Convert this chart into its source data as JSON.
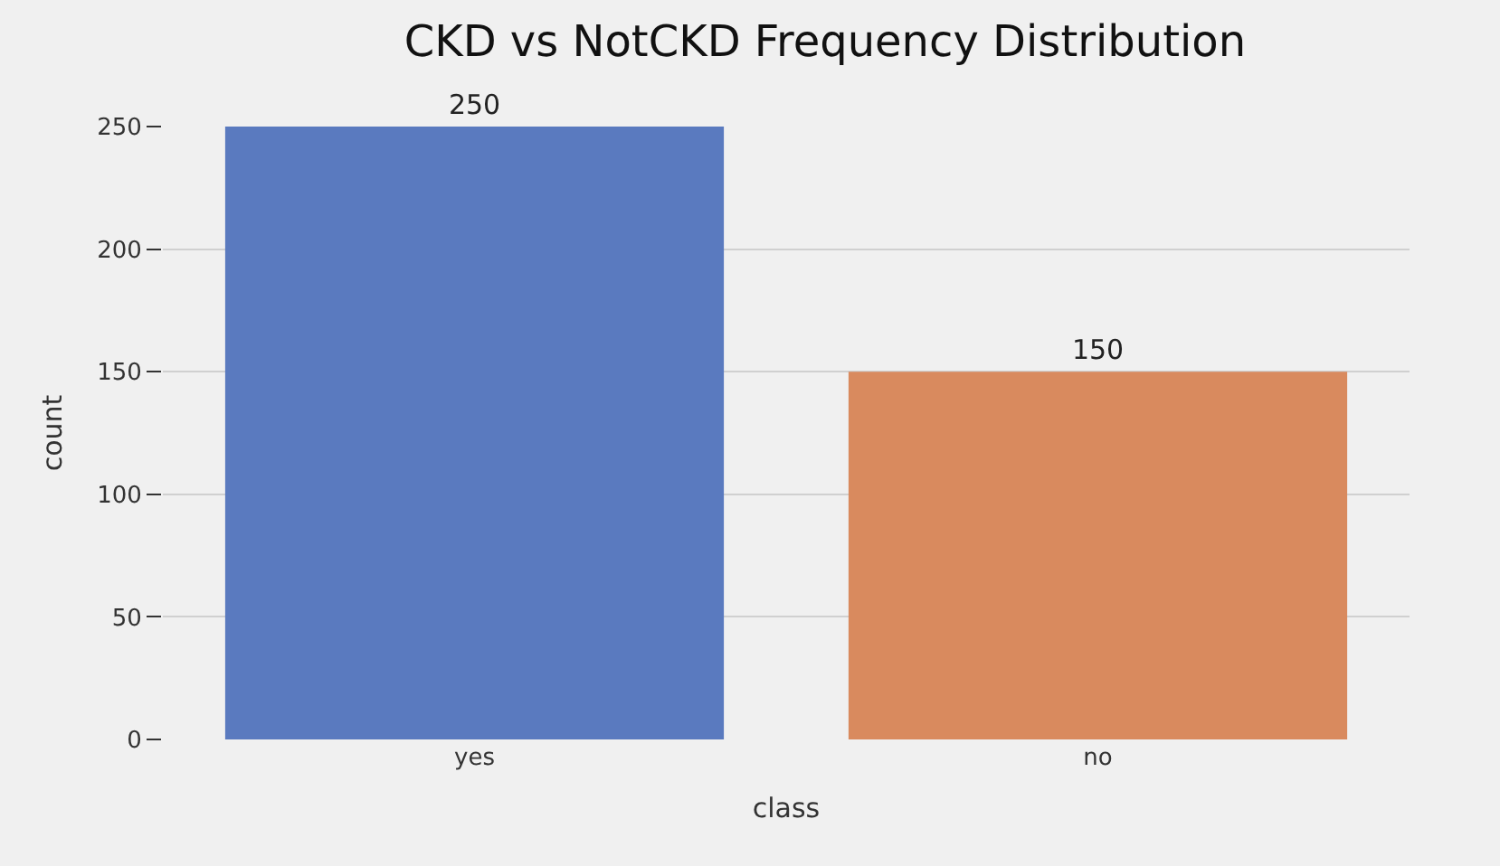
{
  "chart_data": {
    "type": "bar",
    "title": "CKD vs NotCKD Frequency Distribution",
    "xlabel": "class",
    "ylabel": "count",
    "categories": [
      "yes",
      "no"
    ],
    "values": [
      250,
      150
    ],
    "colors": [
      "#5a7abf",
      "#d98a5e"
    ],
    "ylim": [
      0,
      250
    ],
    "yticks": [
      0,
      50,
      100,
      150,
      200,
      250
    ],
    "grid": "y",
    "data_labels": true,
    "legend": false
  }
}
